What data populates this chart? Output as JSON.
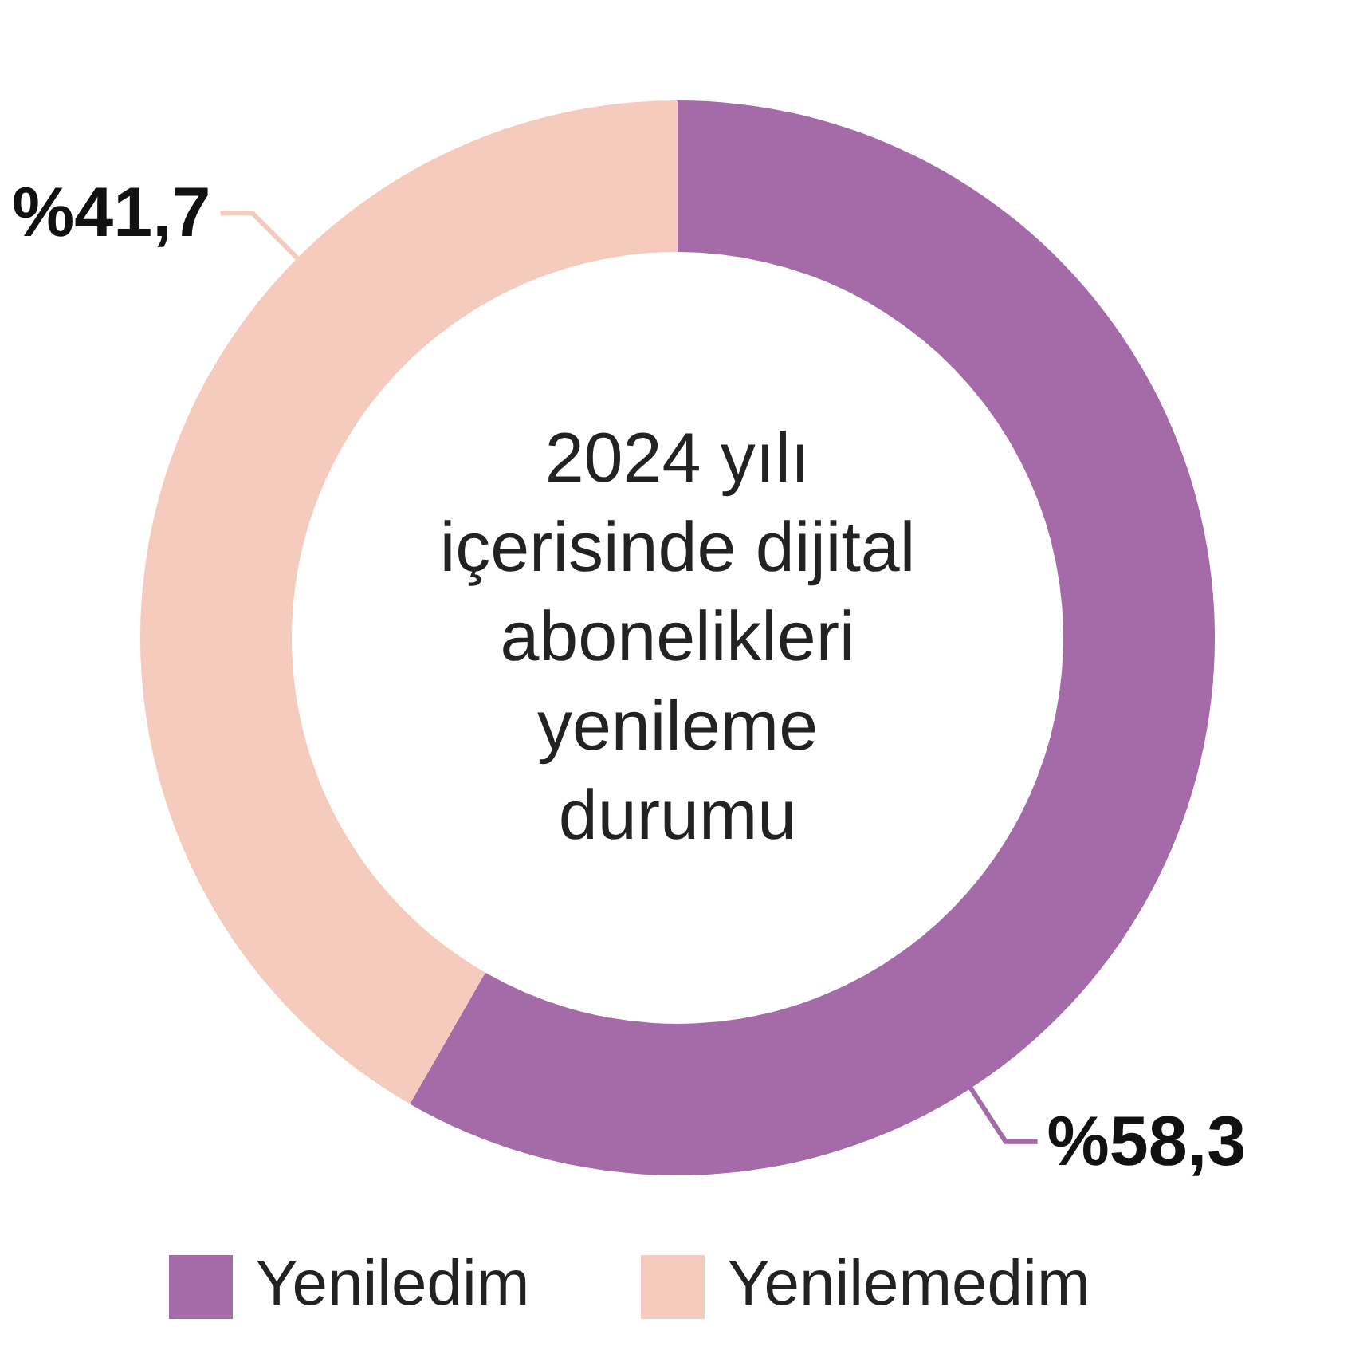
{
  "chart_data": {
    "type": "donut",
    "title": "2024 yılı\niçerisinde dijital\nabonelikleri\nyenileme\ndurumu",
    "categories": [
      "Yeniledim",
      "Yenilemedim"
    ],
    "values": [
      58.3,
      41.7
    ],
    "colors": [
      "#a56aa8",
      "#f4cbbd"
    ],
    "value_labels": [
      "%58,3",
      "%41,7"
    ],
    "legend": "bottom"
  }
}
